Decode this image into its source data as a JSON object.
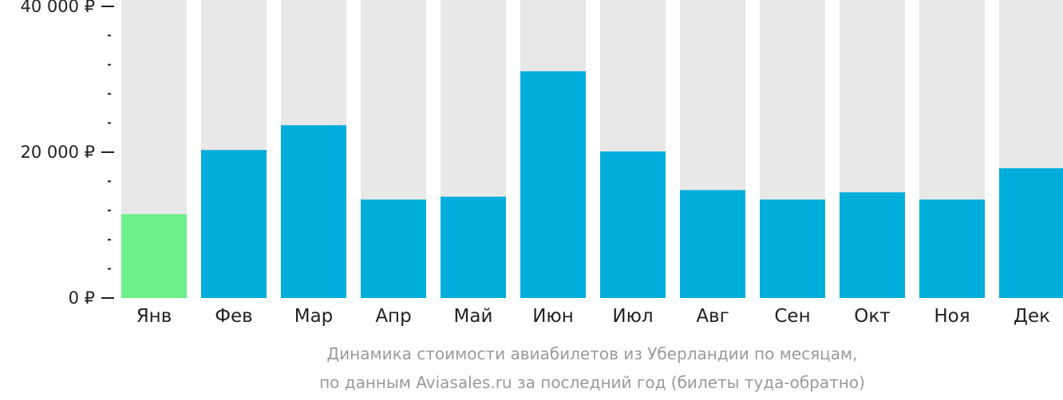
{
  "chart_data": {
    "type": "bar",
    "categories": [
      "Янв",
      "Фев",
      "Мар",
      "Апр",
      "Май",
      "Июн",
      "Июл",
      "Авг",
      "Сен",
      "Окт",
      "Ноя",
      "Дек"
    ],
    "values": [
      11500,
      20300,
      23700,
      13500,
      13900,
      31100,
      20100,
      14800,
      13500,
      14500,
      13500,
      17800
    ],
    "ylim": [
      0,
      40000
    ],
    "y_ticks": [
      {
        "value": 0,
        "label": "0 ₽"
      },
      {
        "value": 20000,
        "label": "20 000 ₽"
      },
      {
        "value": 40000,
        "label": "40 000 ₽"
      }
    ],
    "minor_tick_step": 4000,
    "highlight_index": 0,
    "colors": {
      "bar": "#00aedb",
      "highlight": "#6cf087",
      "track": "#e8e8e8",
      "axis": "#222222"
    },
    "grid": false,
    "legend": "none"
  },
  "caption": {
    "line1": "Динамика стоимости авиабилетов из Уберландии по месяцам,",
    "line2": "по данным Aviasales.ru за последний год (билеты туда-обратно)"
  }
}
